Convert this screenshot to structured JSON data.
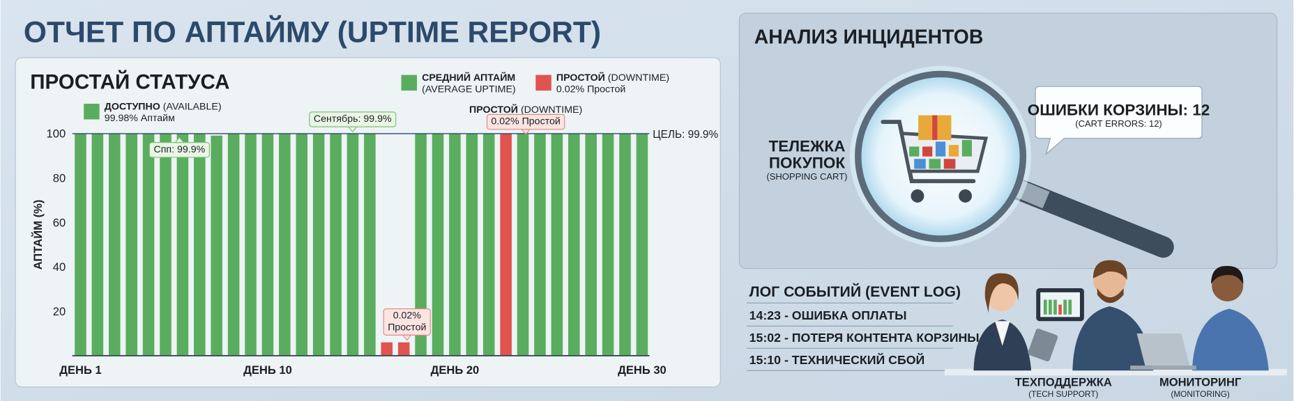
{
  "header": {
    "title": "ОТЧЕТ ПО АПТАЙМУ (UPTIME REPORT)"
  },
  "chart_data": {
    "type": "bar",
    "title": "ПРОСТАЙ СТАТУСА",
    "y_label": "АПТАЙМ (%)",
    "categories": [
      "ДЕНЬ 1",
      null,
      null,
      null,
      null,
      null,
      null,
      null,
      null,
      null,
      null,
      "ДЕНЬ 10",
      null,
      null,
      null,
      null,
      null,
      null,
      null,
      null,
      null,
      null,
      "ДЕНЬ 20",
      null,
      null,
      null,
      null,
      null,
      null,
      null,
      null,
      null,
      null,
      "ДЕНЬ 30"
    ],
    "series": [
      {
        "name": "ДОСТУПНО",
        "name_en": "(AVAILABLE)",
        "note": "99.98% Аптайм",
        "color": "#5aad5e",
        "values": [
          100,
          100,
          100,
          100,
          100,
          99.9,
          100,
          100,
          99,
          100,
          100,
          100,
          100,
          100,
          100,
          100,
          100,
          100,
          null,
          null,
          100,
          100,
          100,
          100,
          100,
          null,
          100,
          100,
          100,
          100,
          100,
          100,
          100,
          100
        ]
      },
      {
        "name": "ПРОСТОЙ",
        "name_en": "(DOWNTIME)",
        "note": "0.02% Простой",
        "color": "#e0534f",
        "values": [
          null,
          null,
          null,
          null,
          null,
          null,
          null,
          null,
          null,
          null,
          null,
          null,
          null,
          null,
          null,
          null,
          null,
          null,
          6,
          6,
          null,
          null,
          null,
          null,
          null,
          100,
          null,
          null,
          null,
          null,
          null,
          null,
          null,
          null
        ]
      }
    ],
    "average_legend": {
      "name": "СРЕДНИЙ АПТАЙМ",
      "name_en": "(AVERAGE UPTIME)",
      "color": "#5aad5e"
    },
    "target": {
      "value": 99.9,
      "label": "ЦЕЛЬ: 99.9%"
    },
    "annotations": [
      {
        "lines": [
          "Спп: 99.9%"
        ]
      },
      {
        "lines": [
          "Сентябрь: 99.9%"
        ]
      },
      {
        "title": "ПРОСТОЙ",
        "title_en": "(DOWNTIME)",
        "lines": [
          "0.02% Простой"
        ]
      },
      {
        "lines": [
          "0.02%",
          "Простой"
        ]
      }
    ],
    "ylim": [
      0,
      100
    ],
    "yticks": [
      20,
      40,
      60,
      80,
      100
    ],
    "grid": false
  },
  "incidents": {
    "title": "АНАЛИЗ ИНЦИДЕНТОВ",
    "cart_label": [
      "ТЕЛЕЖКА",
      "ПОКУПОК"
    ],
    "cart_label_en": "(SHOPPING CART)",
    "errors": "ОШИБКИ КОРЗИНЫ: 12",
    "errors_en": "(CART ERRORS: 12)"
  },
  "event_log": {
    "title": "ЛОГ СОБЫТИЙ (EVENT LOG)",
    "entries": [
      "14:23 - ОШИБКА ОПЛАТЫ",
      "15:02 - ПОТЕРЯ КОНТЕНТА КОРЗИНЫ",
      "15:10 - ТЕХНИЧЕСКИЙ СБОЙ"
    ]
  },
  "teams": [
    {
      "name": "ТЕХПОДДЕРЖКА",
      "name_en": "(TECH SUPPORT)"
    },
    {
      "name": "МОНИТОРИНГ",
      "name_en": "(MONITORING)"
    }
  ]
}
